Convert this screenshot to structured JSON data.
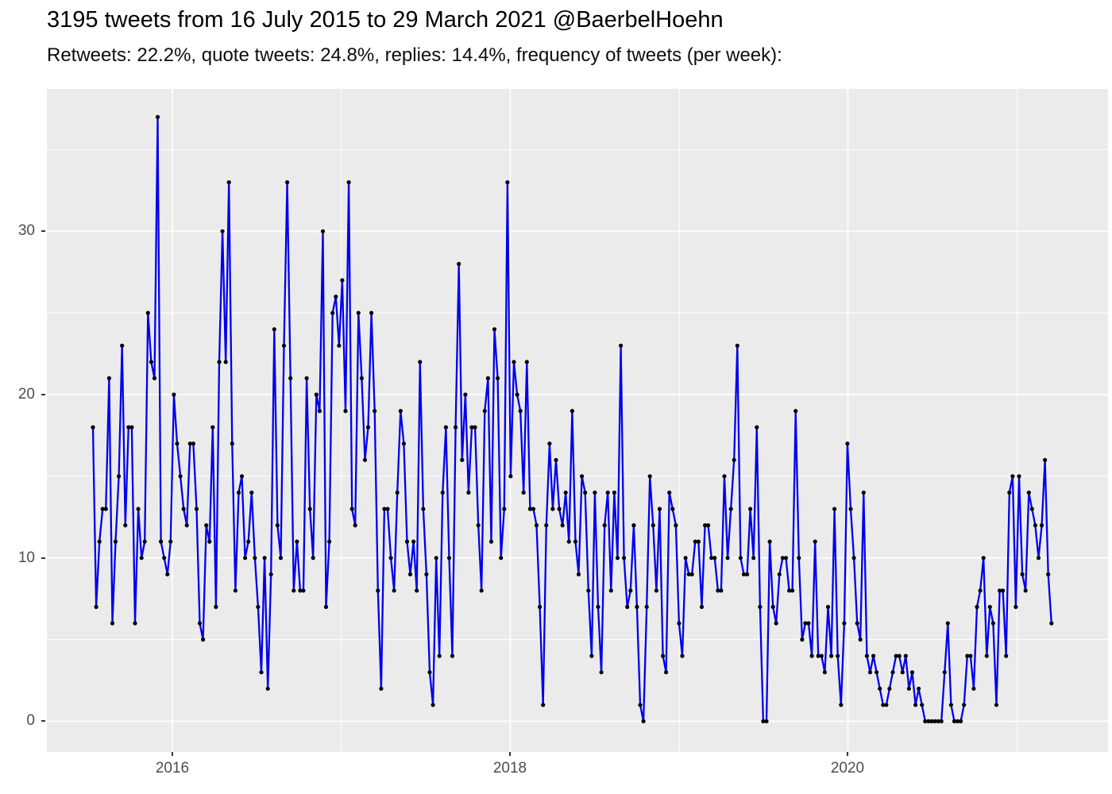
{
  "header": {
    "title": "3195 tweets from 16 July 2015 to 29 March 2021 @BaerbelHoehn",
    "subtitle": "Retweets: 22.2%, quote tweets: 24.8%, replies: 14.4%, frequency of tweets (per week):"
  },
  "chart_data": {
    "type": "line",
    "title": "3195 tweets from 16 July 2015 to 29 March 2021 @BaerbelHoehn",
    "subtitle": "Retweets: 22.2%, quote tweets: 24.8%, replies: 14.4%, frequency of tweets (per week):",
    "series_name": "tweets per week",
    "x_start": "16 July 2015",
    "x_end": "29 March 2021",
    "x_interval": "weekly",
    "x_axis": {
      "tick_labels": [
        "2016",
        "2018",
        "2020"
      ],
      "minor_gridline_years": [
        "2017",
        "2019",
        "2021"
      ]
    },
    "y_axis": {
      "tick_labels": [
        "0",
        "10",
        "20",
        "30"
      ],
      "tick_values": [
        0,
        10,
        20,
        30
      ],
      "range": [
        0,
        37
      ]
    },
    "legend_position": "none",
    "grid": "white major and minor gridlines on gray panel",
    "style": {
      "panel_bg": "#EBEBEB",
      "grid_color": "#FFFFFF",
      "line_color": "#0000EE",
      "point_color": "#000000",
      "axis_text_color": "#4D4D4D",
      "title_color": "#000000"
    },
    "values": [
      18,
      7,
      11,
      13,
      13,
      21,
      6,
      11,
      15,
      23,
      12,
      18,
      18,
      6,
      13,
      10,
      11,
      25,
      22,
      21,
      37,
      11,
      10,
      9,
      11,
      20,
      17,
      15,
      13,
      12,
      17,
      17,
      13,
      6,
      5,
      12,
      11,
      18,
      7,
      22,
      30,
      22,
      33,
      17,
      8,
      14,
      15,
      10,
      11,
      14,
      10,
      7,
      3,
      10,
      2,
      9,
      24,
      12,
      10,
      23,
      33,
      21,
      8,
      11,
      8,
      8,
      21,
      13,
      10,
      20,
      19,
      30,
      7,
      11,
      25,
      26,
      23,
      27,
      19,
      33,
      13,
      12,
      25,
      21,
      16,
      18,
      25,
      19,
      8,
      2,
      13,
      13,
      10,
      8,
      14,
      19,
      17,
      11,
      9,
      11,
      8,
      22,
      13,
      9,
      3,
      1,
      10,
      4,
      14,
      18,
      10,
      4,
      18,
      28,
      16,
      20,
      14,
      18,
      18,
      12,
      8,
      19,
      21,
      11,
      24,
      21,
      10,
      13,
      33,
      15,
      22,
      20,
      19,
      14,
      22,
      13,
      13,
      12,
      7,
      1,
      12,
      17,
      13,
      16,
      13,
      12,
      14,
      11,
      19,
      11,
      9,
      15,
      14,
      8,
      4,
      14,
      7,
      3,
      12,
      14,
      8,
      14,
      10,
      23,
      10,
      7,
      8,
      12,
      7,
      1,
      0,
      7,
      15,
      12,
      8,
      13,
      4,
      3,
      14,
      13,
      12,
      6,
      4,
      10,
      9,
      9,
      11,
      11,
      7,
      12,
      12,
      10,
      10,
      8,
      8,
      15,
      10,
      13,
      16,
      23,
      10,
      9,
      9,
      13,
      10,
      18,
      7,
      0,
      0,
      11,
      7,
      6,
      9,
      10,
      10,
      8,
      8,
      19,
      10,
      5,
      6,
      6,
      4,
      11,
      4,
      4,
      3,
      7,
      4,
      13,
      4,
      1,
      6,
      17,
      13,
      10,
      6,
      5,
      14,
      4,
      3,
      4,
      3,
      2,
      1,
      1,
      2,
      3,
      4,
      4,
      3,
      4,
      2,
      3,
      1,
      2,
      1,
      0,
      0,
      0,
      0,
      0,
      0,
      3,
      6,
      1,
      0,
      0,
      0,
      1,
      4,
      4,
      2,
      7,
      8,
      10,
      4,
      7,
      6,
      1,
      8,
      8,
      4,
      14,
      15,
      7,
      15,
      9,
      8,
      14,
      13,
      12,
      10,
      12,
      16,
      9,
      6
    ]
  }
}
